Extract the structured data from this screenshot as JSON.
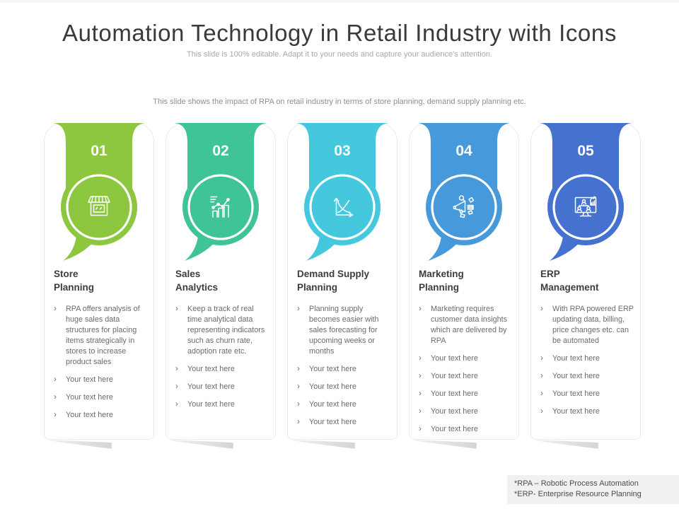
{
  "header": {
    "title": "Automation Technology in Retail Industry with Icons",
    "subtitle": "This slide is 100% editable. Adapt it to your needs and capture your audience's attention.",
    "caption": "This slide shows the impact of RPA on retail industry in terms of store planning, demand supply planning etc."
  },
  "bullet_marker": "›",
  "columns": [
    {
      "number": "01",
      "color": "#8DC63F",
      "icon": "storefront-icon",
      "title": "Store\nPlanning",
      "bullets": [
        "RPA offers analysis of huge sales data structures for placing items strategically in stores to increase product sales",
        "Your text here",
        "Your text here",
        "Your text here"
      ]
    },
    {
      "number": "02",
      "color": "#3FC495",
      "icon": "bar-chart-trend-icon",
      "title": "Sales\nAnalytics",
      "bullets": [
        "Keep a track of real time analytical data representing indicators such as churn rate, adoption rate etc.",
        "Your text here",
        "Your text here",
        "Your text here"
      ]
    },
    {
      "number": "03",
      "color": "#45C8DE",
      "icon": "supply-demand-curve-icon",
      "title": "Demand Supply\nPlanning",
      "bullets": [
        "Planning supply becomes easier with sales forecasting for upcoming weeks or months",
        "Your text here",
        "Your text here",
        "Your text here",
        "Your text here"
      ]
    },
    {
      "number": "04",
      "color": "#4699DA",
      "icon": "megaphone-icon",
      "title": "Marketing\nPlanning",
      "bullets": [
        "Marketing requires customer data insights which are delivered by RPA",
        "Your text here",
        "Your text here",
        "Your text here",
        "Your text here",
        "Your text here"
      ]
    },
    {
      "number": "05",
      "color": "#4472CE",
      "icon": "erp-monitor-icon",
      "title": "ERP\nManagement",
      "bullets": [
        "With RPA powered ERP updating data, billing, price changes etc. can be automated",
        "Your text here",
        "Your text here",
        "Your text here",
        "Your text here"
      ]
    }
  ],
  "footnote": {
    "line1": "*RPA – Robotic Process Automation",
    "line2": "*ERP- Enterprise Resource Planning"
  }
}
